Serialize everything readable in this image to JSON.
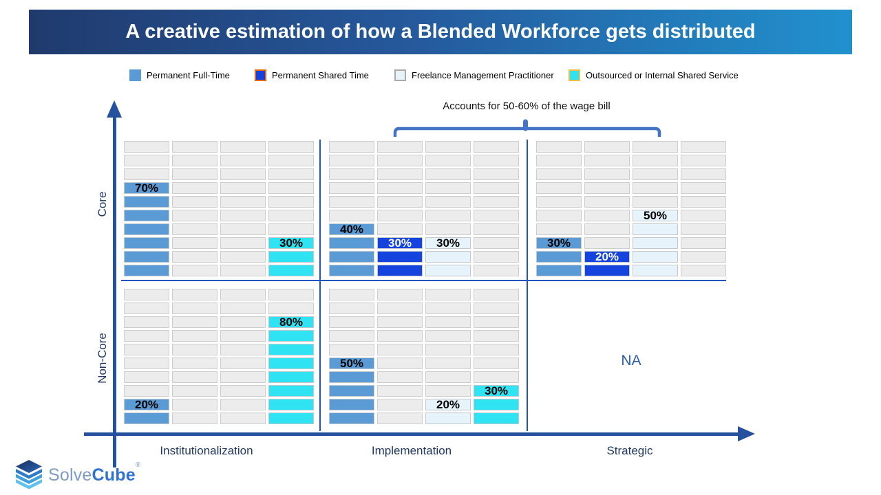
{
  "title": "A creative estimation of how a Blended Workforce gets distributed",
  "legend": [
    {
      "label": "Permanent Full-Time",
      "color": "#5B9BD5",
      "border_color": "#5B9BD5",
      "label_text_color": "#000000"
    },
    {
      "label": "Permanent Shared Time",
      "color": "#1443DE",
      "border_color": "#E8680A",
      "label_text_color": "#FFFFFF"
    },
    {
      "label": "Freelance Management Practitioner",
      "color": "#E6F3FB",
      "border_color": "#A9A9A9",
      "label_text_color": "#000000"
    },
    {
      "label": "Outsourced or Internal Shared Service",
      "color": "#30E3F3",
      "border_color": "#F2BE42",
      "label_text_color": "#000000"
    }
  ],
  "annotation": "Accounts for 50-60% of the wage bill",
  "axes": {
    "y_title_top": "Core",
    "y_title_bottom": "Non-Core",
    "x_labels": [
      "Institutionalization",
      "Implementation",
      "Strategic"
    ]
  },
  "logo": {
    "word1": "Solve",
    "word2": "Cube",
    "registered_mark": "®"
  },
  "chart_data": {
    "type": "block-matrix",
    "title": "A creative estimation of how a Blended Workforce gets distributed",
    "annotation": "Accounts for 50-60% of the wage bill",
    "block_value_percent": 10,
    "blocks_per_column": 10,
    "rows": [
      "Core",
      "Non-Core"
    ],
    "columns": [
      "Institutionalization",
      "Implementation",
      "Strategic"
    ],
    "series": [
      "Permanent Full-Time",
      "Permanent Shared Time",
      "Freelance Management Practitioner",
      "Outsourced or Internal Shared Service"
    ],
    "values": {
      "Core": {
        "Institutionalization": [
          70,
          0,
          0,
          30
        ],
        "Implementation": [
          40,
          30,
          30,
          0
        ],
        "Strategic": [
          30,
          20,
          50,
          0
        ]
      },
      "Non-Core": {
        "Institutionalization": [
          20,
          0,
          0,
          80
        ],
        "Implementation": [
          50,
          0,
          20,
          30
        ],
        "Strategic": "NA"
      }
    }
  }
}
